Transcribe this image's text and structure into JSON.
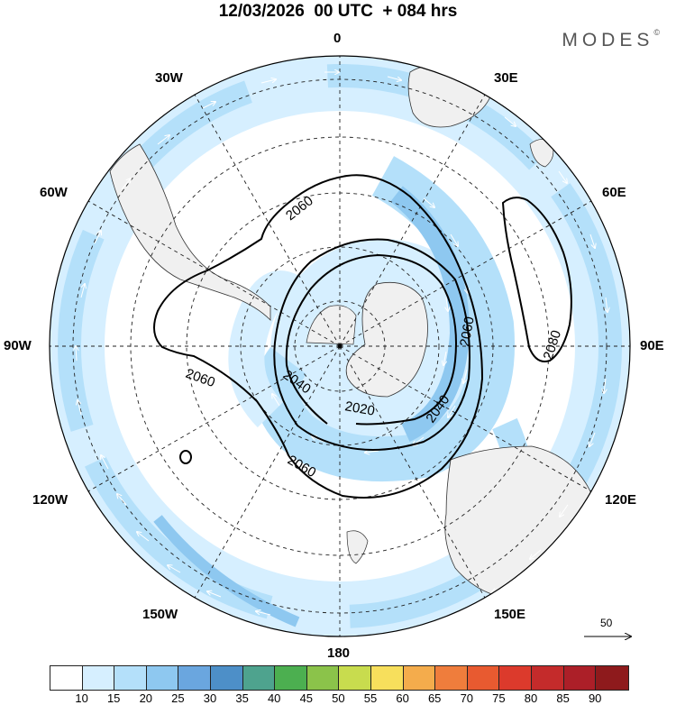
{
  "header": {
    "title": "12/03/2026  00 UTC  + 084 hrs",
    "brand": "MODES",
    "brand_mark": "©"
  },
  "map": {
    "projection": "south polar stereographic",
    "longitude_labels": {
      "top": "0",
      "n30e": "30E",
      "n60e": "60E",
      "e90": "90E",
      "s120e": "120E",
      "s150e": "150E",
      "bottom": "180",
      "s150w": "150W",
      "s120w": "120W",
      "w90": "90W",
      "n60w": "60W",
      "n30w": "30W"
    },
    "contour_labels": [
      "2060",
      "2080",
      "2060",
      "2060",
      "2060",
      "2040",
      "2040",
      "2020"
    ],
    "colors": {
      "ocean": "#ffffff",
      "land": "#f0f0f0",
      "shade_10_15": "#d6efff",
      "shade_15_20": "#b4e0fa"
    }
  },
  "reference_vector": {
    "label": "50"
  },
  "colorbar": {
    "colors": [
      "#ffffff",
      "#d6efff",
      "#b4e0fa",
      "#8ec8f0",
      "#6aa6df",
      "#4d8fc8",
      "#4ea38e",
      "#4caf50",
      "#8bc34a",
      "#c8dc4e",
      "#f7df5c",
      "#f4ac4c",
      "#ef7d3c",
      "#e85a30",
      "#dc3a2c",
      "#c42b2b",
      "#ac1f28",
      "#8e1a1c"
    ],
    "ticks": [
      "10",
      "15",
      "20",
      "25",
      "30",
      "35",
      "40",
      "45",
      "50",
      "55",
      "60",
      "65",
      "70",
      "75",
      "80",
      "85",
      "90"
    ]
  }
}
